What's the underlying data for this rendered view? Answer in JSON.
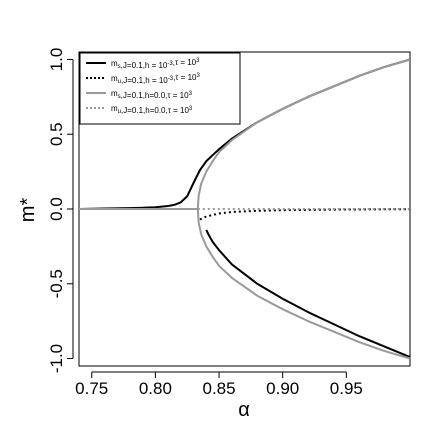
{
  "chart_data": {
    "type": "line",
    "xlabel": "α",
    "ylabel": "m*",
    "xlim": [
      0.74,
      1.0
    ],
    "ylim": [
      -1.05,
      1.05
    ],
    "x_ticks": [
      0.75,
      0.8,
      0.85,
      0.9,
      0.95
    ],
    "x_tick_labels": [
      "0.75",
      "0.80",
      "0.85",
      "0.90",
      "0.95"
    ],
    "y_ticks": [
      -1.0,
      -0.5,
      0.0,
      0.5,
      1.0
    ],
    "y_tick_labels": [
      "-1.0",
      "-0.5",
      "0.0",
      "0.5",
      "1.0"
    ],
    "legend_position": "top-left",
    "legend": [
      {
        "label": "m_s,J=0.1,h = 10^-3,τ = 10^3",
        "color": "#000000",
        "style": "solid"
      },
      {
        "label": "m_u,J=0.1,h = 10^-3,τ = 10^3",
        "color": "#000000",
        "style": "dotted"
      },
      {
        "label": "m_s,J=0.1,h=0.0,τ = 10^3",
        "color": "#999999",
        "style": "solid"
      },
      {
        "label": "m_u,J=0.1,h=0.0,τ = 10^3",
        "color": "#999999",
        "style": "dotted"
      }
    ],
    "series": [
      {
        "color": "#000000",
        "style": "solid",
        "x": [
          0.74,
          0.76,
          0.78,
          0.79,
          0.8,
          0.81,
          0.815,
          0.82,
          0.825,
          0.83,
          0.835,
          0.84,
          0.85,
          0.86,
          0.88,
          0.9,
          0.92,
          0.94,
          0.96,
          0.98,
          1.0
        ],
        "y": [
          0.0,
          0.003,
          0.006,
          0.008,
          0.012,
          0.02,
          0.028,
          0.045,
          0.085,
          0.175,
          0.26,
          0.32,
          0.4,
          0.47,
          0.58,
          0.67,
          0.75,
          0.82,
          0.89,
          0.95,
          1.0
        ]
      },
      {
        "color": "#000000",
        "style": "solid",
        "x": [
          0.84,
          0.842,
          0.845,
          0.85,
          0.86,
          0.88,
          0.9,
          0.92,
          0.94,
          0.96,
          0.98,
          1.0
        ],
        "y": [
          -0.14,
          -0.175,
          -0.22,
          -0.275,
          -0.37,
          -0.5,
          -0.6,
          -0.69,
          -0.77,
          -0.85,
          -0.92,
          -0.99
        ]
      },
      {
        "color": "#000000",
        "style": "dotted",
        "x": [
          0.835,
          0.84,
          0.85,
          0.86,
          0.88,
          0.9,
          0.92,
          0.94,
          0.96,
          0.98,
          1.0
        ],
        "y": [
          -0.07,
          -0.05,
          -0.03,
          -0.02,
          -0.012,
          -0.008,
          -0.006,
          -0.004,
          -0.003,
          -0.002,
          -0.002
        ]
      },
      {
        "color": "#999999",
        "style": "solid",
        "x": [
          0.74,
          0.8333
        ],
        "y": [
          0.0,
          0.0
        ]
      },
      {
        "color": "#999999",
        "style": "solid",
        "x": [
          0.8333,
          0.834,
          0.836,
          0.84,
          0.845,
          0.85,
          0.86,
          0.88,
          0.9,
          0.92,
          0.94,
          0.96,
          0.98,
          1.0
        ],
        "y": [
          0.0,
          0.09,
          0.17,
          0.25,
          0.32,
          0.38,
          0.46,
          0.58,
          0.67,
          0.75,
          0.82,
          0.89,
          0.95,
          1.0
        ]
      },
      {
        "color": "#999999",
        "style": "solid",
        "x": [
          0.8333,
          0.834,
          0.836,
          0.84,
          0.845,
          0.85,
          0.86,
          0.88,
          0.9,
          0.92,
          0.94,
          0.96,
          0.98,
          1.0
        ],
        "y": [
          0.0,
          -0.09,
          -0.17,
          -0.25,
          -0.32,
          -0.38,
          -0.46,
          -0.58,
          -0.67,
          -0.75,
          -0.82,
          -0.89,
          -0.95,
          -1.0
        ]
      },
      {
        "color": "#999999",
        "style": "dotted",
        "x": [
          0.8333,
          1.0
        ],
        "y": [
          0.0,
          0.0
        ]
      }
    ]
  }
}
